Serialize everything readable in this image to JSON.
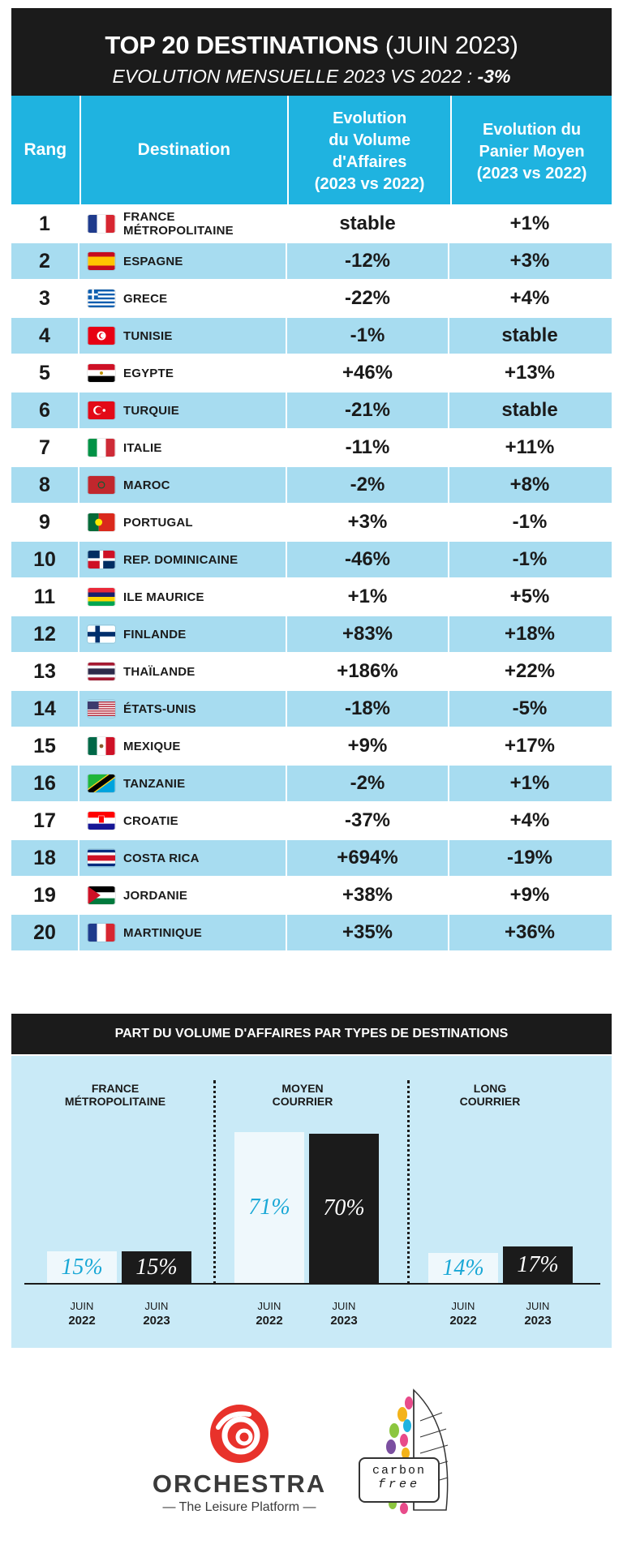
{
  "header": {
    "title_bold": "TOP 20 DESTINATIONS",
    "title_rest": "(JUIN 2023)",
    "subtitle": "EVOLUTION MENSUELLE 2023 VS 2022 :",
    "subtitle_value": "-3%"
  },
  "table": {
    "columns": [
      "Rang",
      "Destination",
      "Evolution\ndu Volume\nd'Affaires\n(2023 vs 2022)",
      "Evolution du\nPanier Moyen\n(2023 vs 2022)"
    ],
    "rows": [
      {
        "rank": "1",
        "dest": "FRANCE MÉTROPOLITAINE",
        "vol": "stable",
        "pan": "+1%",
        "flag": "france"
      },
      {
        "rank": "2",
        "dest": "ESPAGNE",
        "vol": "-12%",
        "pan": "+3%",
        "flag": "spain"
      },
      {
        "rank": "3",
        "dest": "GRECE",
        "vol": "-22%",
        "pan": "+4%",
        "flag": "greece"
      },
      {
        "rank": "4",
        "dest": "TUNISIE",
        "vol": "-1%",
        "pan": "stable",
        "flag": "tunisia"
      },
      {
        "rank": "5",
        "dest": "EGYPTE",
        "vol": "+46%",
        "pan": "+13%",
        "flag": "egypt"
      },
      {
        "rank": "6",
        "dest": "TURQUIE",
        "vol": "-21%",
        "pan": "stable",
        "flag": "turkey"
      },
      {
        "rank": "7",
        "dest": "ITALIE",
        "vol": "-11%",
        "pan": "+11%",
        "flag": "italy"
      },
      {
        "rank": "8",
        "dest": "MAROC",
        "vol": "-2%",
        "pan": "+8%",
        "flag": "morocco"
      },
      {
        "rank": "9",
        "dest": "PORTUGAL",
        "vol": "+3%",
        "pan": "-1%",
        "flag": "portugal"
      },
      {
        "rank": "10",
        "dest": "REP. DOMINICAINE",
        "vol": "-46%",
        "pan": "-1%",
        "flag": "dominican"
      },
      {
        "rank": "11",
        "dest": "ILE MAURICE",
        "vol": "+1%",
        "pan": "+5%",
        "flag": "mauritius"
      },
      {
        "rank": "12",
        "dest": "FINLANDE",
        "vol": "+83%",
        "pan": "+18%",
        "flag": "finland"
      },
      {
        "rank": "13",
        "dest": "THAÏLANDE",
        "vol": "+186%",
        "pan": "+22%",
        "flag": "thailand"
      },
      {
        "rank": "14",
        "dest": "ÉTATS-UNIS",
        "vol": "-18%",
        "pan": "-5%",
        "flag": "usa"
      },
      {
        "rank": "15",
        "dest": "MEXIQUE",
        "vol": "+9%",
        "pan": "+17%",
        "flag": "mexico"
      },
      {
        "rank": "16",
        "dest": "TANZANIE",
        "vol": "-2%",
        "pan": "+1%",
        "flag": "tanzania"
      },
      {
        "rank": "17",
        "dest": "CROATIE",
        "vol": "-37%",
        "pan": "+4%",
        "flag": "croatia"
      },
      {
        "rank": "18",
        "dest": "COSTA RICA",
        "vol": "+694%",
        "pan": "-19%",
        "flag": "costarica"
      },
      {
        "rank": "19",
        "dest": "JORDANIE",
        "vol": "+38%",
        "pan": "+9%",
        "flag": "jordan"
      },
      {
        "rank": "20",
        "dest": "MARTINIQUE",
        "vol": "+35%",
        "pan": "+36%",
        "flag": "martinique"
      }
    ]
  },
  "chart_data": {
    "type": "bar",
    "title": "PART DU VOLUME D'AFFAIRES PAR TYPES DE DESTINATIONS",
    "groups": [
      "FRANCE\nMÉTROPOLITAINE",
      "MOYEN\nCOURRIER",
      "LONG\nCOURRIER"
    ],
    "series": [
      {
        "name": "JUIN 2022",
        "values": [
          15,
          71,
          14
        ]
      },
      {
        "name": "JUIN 2023",
        "values": [
          15,
          70,
          17
        ]
      }
    ],
    "x_labels": [
      {
        "month": "JUIN",
        "year": "2022"
      },
      {
        "month": "JUIN",
        "year": "2023"
      }
    ],
    "value_suffix": "%",
    "ylim": [
      0,
      80
    ],
    "colors": {
      "2022": "#eff8fc",
      "2023": "#1b1b1b",
      "label_2022": "#1aa8d6",
      "header": "#1fb3e0",
      "stripe": "#a7dcf0",
      "panel": "#c9eaf7"
    }
  },
  "footer": {
    "brand": "ORCHESTRA",
    "tagline": "— The Leisure Platform —",
    "badge_line1": "carbon",
    "badge_line2": "free"
  }
}
